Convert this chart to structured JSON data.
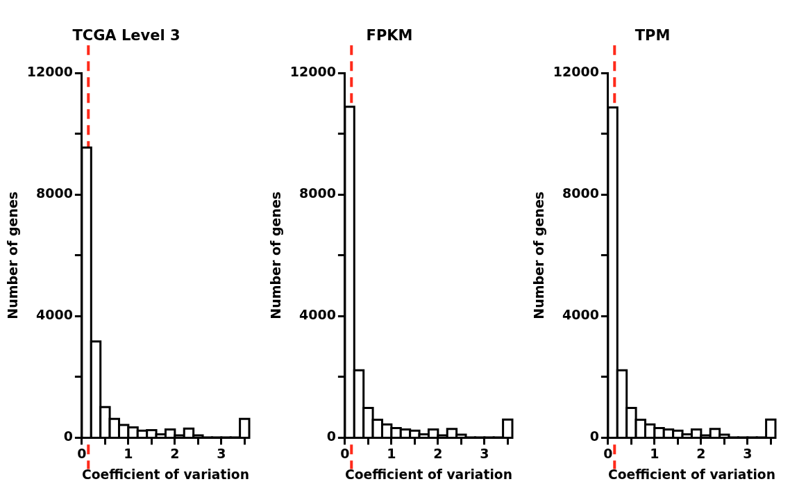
{
  "chart_data": [
    {
      "type": "histogram",
      "title": "TCGA Level 3",
      "xlabel": "Coefficient of variation",
      "ylabel": "Number of genes",
      "color": "#000000",
      "bins": [
        0,
        0.2,
        0.4,
        0.6,
        0.8,
        1.0,
        1.2,
        1.4,
        1.6,
        1.8,
        2.0,
        2.2,
        2.4,
        2.6,
        2.8,
        3.0,
        3.2,
        3.4,
        3.6
      ],
      "values": [
        9550,
        3170,
        1010,
        620,
        420,
        340,
        230,
        250,
        110,
        270,
        80,
        300,
        80,
        10,
        10,
        10,
        10,
        620
      ],
      "xlim": [
        0,
        3.6
      ],
      "ylim": [
        0,
        12000
      ],
      "xticks": [
        0,
        {
          "value": 0.5,
          "label": null
        },
        1,
        {
          "value": 1.5,
          "label": null
        },
        2,
        {
          "value": 2.5,
          "label": null
        },
        3,
        {
          "value": 3.5,
          "label": null
        }
      ],
      "yticks": [
        0,
        {
          "value": 2000,
          "label": null
        },
        4000,
        {
          "value": 6000,
          "label": null
        },
        8000,
        {
          "value": 10000,
          "label": null
        },
        12000
      ],
      "ref_lines": [
        {
          "axis": "x",
          "value": 0.14,
          "color": "#ff2a1a",
          "line_style": "dashed"
        }
      ],
      "grid": false,
      "legend": false
    },
    {
      "type": "histogram",
      "title": "FPKM",
      "xlabel": "Coefficient of variation",
      "ylabel": "Number of genes",
      "color": "#000000",
      "bins": [
        0,
        0.2,
        0.4,
        0.6,
        0.8,
        1.0,
        1.2,
        1.4,
        1.6,
        1.8,
        2.0,
        2.2,
        2.4,
        2.6,
        2.8,
        3.0,
        3.2,
        3.4,
        3.6
      ],
      "values": [
        10890,
        2220,
        980,
        590,
        440,
        320,
        270,
        230,
        110,
        270,
        80,
        290,
        100,
        10,
        10,
        10,
        10,
        600
      ],
      "xlim": [
        0,
        3.6
      ],
      "ylim": [
        0,
        12000
      ],
      "xticks": [
        0,
        {
          "value": 0.5,
          "label": null
        },
        1,
        {
          "value": 1.5,
          "label": null
        },
        2,
        {
          "value": 2.5,
          "label": null
        },
        3,
        {
          "value": 3.5,
          "label": null
        }
      ],
      "yticks": [
        0,
        {
          "value": 2000,
          "label": null
        },
        4000,
        {
          "value": 6000,
          "label": null
        },
        8000,
        {
          "value": 10000,
          "label": null
        },
        12000
      ],
      "ref_lines": [
        {
          "axis": "x",
          "value": 0.14,
          "color": "#ff2a1a",
          "line_style": "dashed"
        }
      ],
      "grid": false,
      "legend": false
    },
    {
      "type": "histogram",
      "title": "TPM",
      "xlabel": "Coefficient of variation",
      "ylabel": "Number of genes",
      "color": "#000000",
      "bins": [
        0,
        0.2,
        0.4,
        0.6,
        0.8,
        1.0,
        1.2,
        1.4,
        1.6,
        1.8,
        2.0,
        2.2,
        2.4,
        2.6,
        2.8,
        3.0,
        3.2,
        3.4,
        3.6
      ],
      "values": [
        10870,
        2220,
        980,
        590,
        440,
        320,
        270,
        230,
        110,
        270,
        80,
        290,
        100,
        10,
        10,
        10,
        10,
        600
      ],
      "xlim": [
        0,
        3.6
      ],
      "ylim": [
        0,
        12000
      ],
      "xticks": [
        0,
        {
          "value": 0.5,
          "label": null
        },
        1,
        {
          "value": 1.5,
          "label": null
        },
        2,
        {
          "value": 2.5,
          "label": null
        },
        3,
        {
          "value": 3.5,
          "label": null
        }
      ],
      "yticks": [
        0,
        {
          "value": 2000,
          "label": null
        },
        4000,
        {
          "value": 6000,
          "label": null
        },
        8000,
        {
          "value": 10000,
          "label": null
        },
        12000
      ],
      "ref_lines": [
        {
          "axis": "x",
          "value": 0.14,
          "color": "#ff2a1a",
          "line_style": "dashed"
        }
      ],
      "grid": false,
      "legend": false
    }
  ]
}
